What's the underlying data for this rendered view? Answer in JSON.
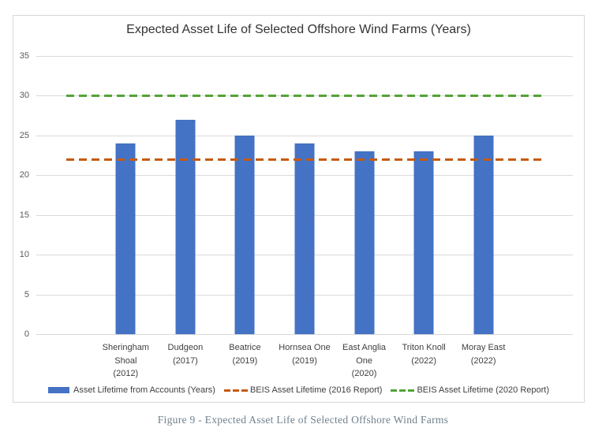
{
  "figure": {
    "caption": "Figure 9 - Expected Asset Life of Selected Offshore Wind Farms"
  },
  "chart_data": {
    "type": "bar",
    "title": "Expected Asset Life of Selected Offshore Wind Farms (Years)",
    "categories": [
      "Sheringham\nShoal\n(2012)",
      "Dudgeon\n(2017)",
      "Beatrice\n(2019)",
      "Hornsea One\n(2019)",
      "East Anglia\nOne\n(2020)",
      "Triton Knoll\n(2022)",
      "Moray East\n(2022)"
    ],
    "series": [
      {
        "type": "bar",
        "name": "Asset Lifetime from Accounts (Years)",
        "values": [
          24,
          27,
          25,
          24,
          23,
          23,
          25
        ],
        "color": "#4472C4"
      },
      {
        "type": "line-dashed",
        "name": "BEIS Asset Lifetime (2016 Report)",
        "value": 22,
        "color": "#C55A11"
      },
      {
        "type": "line-dashed",
        "name": "BEIS Asset Lifetime (2020 Report)",
        "value": 30,
        "color": "#53A336"
      }
    ],
    "xlabel": "",
    "ylabel": "",
    "ylim": [
      0,
      35
    ],
    "yticks": [
      0,
      5,
      10,
      15,
      20,
      25,
      30,
      35
    ],
    "grid": true,
    "legend_position": "bottom",
    "padding_bands": 1
  }
}
